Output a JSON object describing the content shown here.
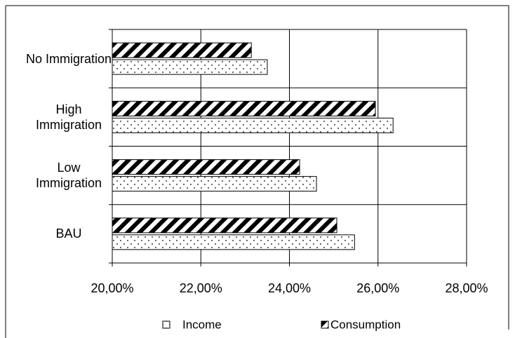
{
  "chart_data": {
    "type": "hbar",
    "categories": [
      "BAU",
      "Low Immigration",
      "High Immigration",
      "No Immigration"
    ],
    "series": [
      {
        "name": "Income",
        "color": "#000000",
        "values": [
          25.47,
          24.61,
          26.34,
          23.5
        ]
      },
      {
        "name": "Consumption",
        "color": "#000000",
        "values": [
          25.07,
          24.23,
          25.94,
          23.14
        ]
      }
    ],
    "xlim": [
      20,
      28
    ],
    "xticks": [
      {
        "value": 20,
        "label": "20,00%"
      },
      {
        "value": 22,
        "label": "22,00%"
      },
      {
        "value": 24,
        "label": "24,00%"
      },
      {
        "value": 26,
        "label": "26,00%"
      },
      {
        "value": 28,
        "label": "28,00%"
      }
    ],
    "grid": true
  }
}
